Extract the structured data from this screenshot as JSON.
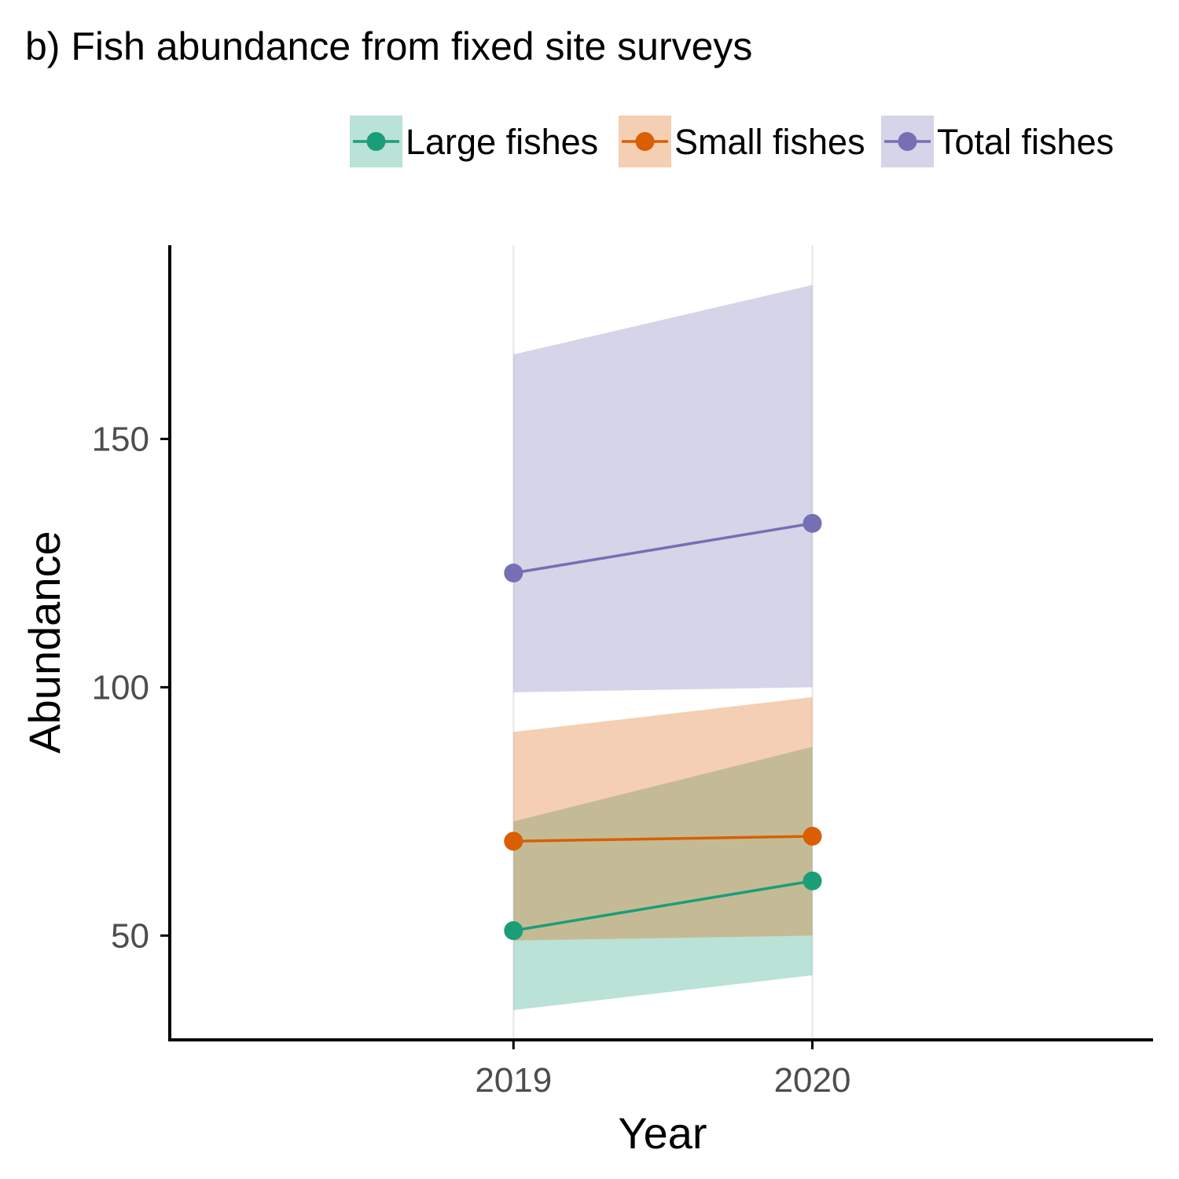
{
  "chart_data": {
    "type": "line",
    "title": "b) Fish abundance from fixed site surveys",
    "xlabel": "Year",
    "ylabel": "Abundance",
    "categories": [
      "2019",
      "2020"
    ],
    "x": [
      2019,
      2020
    ],
    "ylim": [
      29,
      189
    ],
    "yticks": [
      50,
      100,
      150
    ],
    "grid": "vertical major gridlines only",
    "legend_position": "top-right",
    "series": [
      {
        "name": "Large fishes",
        "color": "#1b9e77",
        "fill": "#1b9e77",
        "values": [
          51,
          61
        ],
        "lower": [
          35,
          42
        ],
        "upper": [
          73,
          88
        ]
      },
      {
        "name": "Small fishes",
        "color": "#d95f02",
        "fill": "#d95f02",
        "values": [
          69,
          70
        ],
        "lower": [
          49,
          50
        ],
        "upper": [
          91,
          98
        ]
      },
      {
        "name": "Total fishes",
        "color": "#7570b3",
        "fill": "#7570b3",
        "values": [
          123,
          133
        ],
        "lower": [
          99,
          100
        ],
        "upper": [
          167,
          181
        ]
      }
    ]
  }
}
